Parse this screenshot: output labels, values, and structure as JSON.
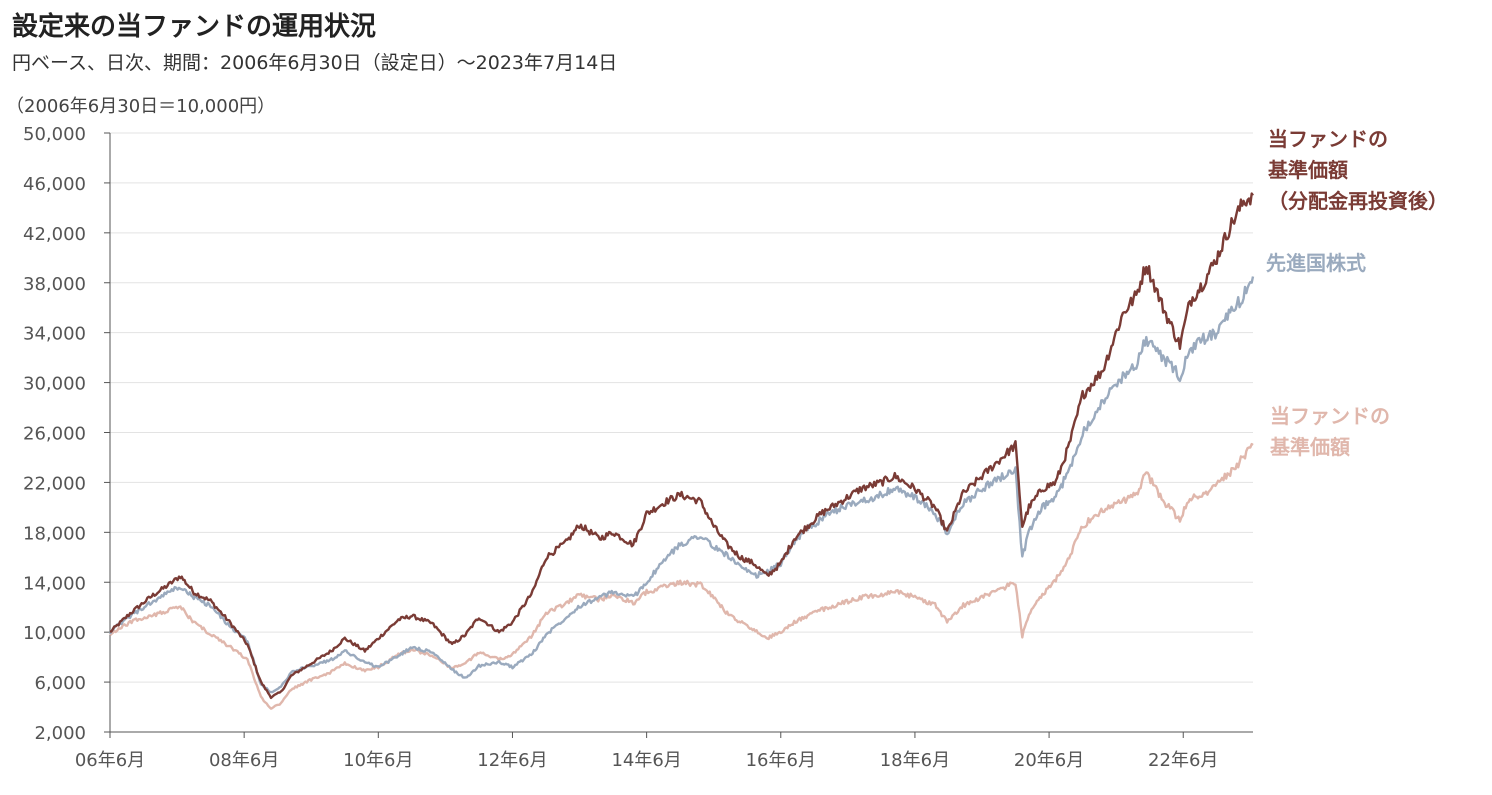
{
  "header": {
    "title": "設定来の当ファンドの運用状況",
    "subtitle": "円ベース、日次、期間：2006年6月30日（設定日）～2023年7月14日",
    "unit_note": "（2006年6月30日＝10,000円）"
  },
  "legend": {
    "fund_reinvested": [
      "当ファンドの",
      "基準価額",
      "（分配金再投資後）"
    ],
    "benchmark": [
      "先進国株式"
    ],
    "fund_nav": [
      "当ファンドの",
      "基準価額"
    ]
  },
  "chart_data": {
    "type": "line",
    "title": "設定来の当ファンドの運用状況",
    "ylim": [
      2000,
      50000
    ],
    "yticks": [
      2000,
      6000,
      10000,
      14000,
      18000,
      22000,
      26000,
      30000,
      34000,
      38000,
      42000,
      46000,
      50000
    ],
    "ytick_labels": [
      "2,000",
      "6,000",
      "10,000",
      "14,000",
      "18,000",
      "22,000",
      "26,000",
      "30,000",
      "34,000",
      "38,000",
      "42,000",
      "46,000",
      "50,000"
    ],
    "xlim": [
      2006.5,
      2023.54
    ],
    "xticks": [
      2006.5,
      2008.5,
      2010.5,
      2012.5,
      2014.5,
      2016.5,
      2018.5,
      2020.5,
      2022.5
    ],
    "xtick_labels": [
      "06年6月",
      "08年6月",
      "10年6月",
      "12年6月",
      "14年6月",
      "16年6月",
      "18年6月",
      "20年6月",
      "22年6月"
    ],
    "grid": true,
    "series": [
      {
        "name": "当ファンドの基準価額（分配金再投資後）",
        "color": "#7a3b35",
        "x": [
          2006.5,
          2006.8,
          2007.1,
          2007.4,
          2007.55,
          2007.75,
          2008.0,
          2008.3,
          2008.55,
          2008.75,
          2008.9,
          2009.05,
          2009.2,
          2009.5,
          2009.8,
          2010.0,
          2010.3,
          2010.5,
          2010.8,
          2011.0,
          2011.3,
          2011.6,
          2011.8,
          2012.0,
          2012.3,
          2012.5,
          2012.8,
          2013.0,
          2013.3,
          2013.5,
          2013.8,
          2014.0,
          2014.3,
          2014.5,
          2014.8,
          2015.0,
          2015.3,
          2015.5,
          2015.7,
          2015.9,
          2016.1,
          2016.3,
          2016.5,
          2016.7,
          2016.9,
          2017.1,
          2017.4,
          2017.7,
          2018.0,
          2018.2,
          2018.5,
          2018.8,
          2018.98,
          2019.2,
          2019.5,
          2019.8,
          2020.0,
          2020.1,
          2020.2,
          2020.4,
          2020.6,
          2020.8,
          2021.0,
          2021.3,
          2021.6,
          2021.8,
          2021.95,
          2022.2,
          2022.45,
          2022.6,
          2022.8,
          2023.0,
          2023.2,
          2023.4,
          2023.54
        ],
        "values": [
          10000,
          11500,
          12800,
          13900,
          14500,
          13200,
          12500,
          10700,
          9000,
          6000,
          4800,
          5200,
          6500,
          7500,
          8500,
          9500,
          8500,
          9500,
          11000,
          11300,
          10700,
          9000,
          9800,
          11200,
          10000,
          10800,
          13200,
          16000,
          17200,
          18600,
          17500,
          18000,
          17000,
          19500,
          20500,
          21000,
          20500,
          18500,
          17000,
          16000,
          15500,
          14500,
          15500,
          17500,
          18500,
          19500,
          20500,
          21500,
          22000,
          22500,
          21500,
          20000,
          18000,
          21000,
          22500,
          24000,
          25000,
          18500,
          20000,
          21500,
          22000,
          25000,
          29000,
          31000,
          35500,
          37000,
          39500,
          36000,
          33000,
          36500,
          38000,
          40000,
          42500,
          44500,
          45000
        ]
      },
      {
        "name": "先進国株式",
        "color": "#9aaabe",
        "x": [
          2006.5,
          2006.8,
          2007.1,
          2007.4,
          2007.55,
          2007.75,
          2008.0,
          2008.3,
          2008.55,
          2008.75,
          2008.9,
          2009.05,
          2009.2,
          2009.5,
          2009.8,
          2010.0,
          2010.3,
          2010.5,
          2010.8,
          2011.0,
          2011.3,
          2011.6,
          2011.8,
          2012.0,
          2012.3,
          2012.5,
          2012.8,
          2013.0,
          2013.3,
          2013.5,
          2013.8,
          2014.0,
          2014.3,
          2014.5,
          2014.8,
          2015.0,
          2015.3,
          2015.5,
          2015.7,
          2015.9,
          2016.1,
          2016.3,
          2016.5,
          2016.7,
          2016.9,
          2017.1,
          2017.4,
          2017.7,
          2018.0,
          2018.2,
          2018.5,
          2018.8,
          2018.98,
          2019.2,
          2019.5,
          2019.8,
          2020.0,
          2020.1,
          2020.2,
          2020.4,
          2020.6,
          2020.8,
          2021.0,
          2021.3,
          2021.6,
          2021.8,
          2021.95,
          2022.2,
          2022.45,
          2022.6,
          2022.8,
          2023.0,
          2023.2,
          2023.4,
          2023.54
        ],
        "values": [
          10000,
          11300,
          12300,
          13300,
          13600,
          12800,
          12100,
          10400,
          9300,
          5800,
          5200,
          5600,
          6800,
          7300,
          7800,
          8500,
          7600,
          7200,
          8100,
          8800,
          8400,
          7000,
          6300,
          7300,
          7600,
          7200,
          8300,
          9800,
          11200,
          12100,
          12800,
          13200,
          12800,
          14000,
          16000,
          17000,
          17800,
          16800,
          16200,
          15200,
          14500,
          14800,
          15500,
          17300,
          18300,
          19000,
          20000,
          20500,
          21000,
          21500,
          20800,
          19500,
          17800,
          20200,
          21500,
          22500,
          23000,
          16000,
          18000,
          20000,
          20800,
          23000,
          26000,
          28500,
          30500,
          31500,
          33500,
          32000,
          30500,
          32500,
          33500,
          34000,
          35500,
          37000,
          38500
        ]
      },
      {
        "name": "当ファンドの基準価額",
        "color": "#e0b7ac",
        "x": [
          2006.5,
          2006.8,
          2007.1,
          2007.4,
          2007.55,
          2007.75,
          2008.0,
          2008.3,
          2008.55,
          2008.75,
          2008.9,
          2009.05,
          2009.2,
          2009.5,
          2009.8,
          2010.0,
          2010.3,
          2010.5,
          2010.8,
          2011.0,
          2011.3,
          2011.6,
          2011.8,
          2012.0,
          2012.3,
          2012.5,
          2012.8,
          2013.0,
          2013.3,
          2013.5,
          2013.8,
          2014.0,
          2014.3,
          2014.5,
          2014.8,
          2015.0,
          2015.3,
          2015.5,
          2015.7,
          2015.9,
          2016.1,
          2016.3,
          2016.5,
          2016.7,
          2016.9,
          2017.1,
          2017.4,
          2017.7,
          2018.0,
          2018.2,
          2018.5,
          2018.8,
          2018.98,
          2019.2,
          2019.5,
          2019.8,
          2020.0,
          2020.1,
          2020.2,
          2020.4,
          2020.6,
          2020.8,
          2021.0,
          2021.3,
          2021.6,
          2021.8,
          2021.95,
          2022.2,
          2022.45,
          2022.6,
          2022.8,
          2023.0,
          2023.2,
          2023.4,
          2023.54
        ],
        "values": [
          9800,
          10800,
          11300,
          11800,
          12000,
          10800,
          9800,
          8800,
          7800,
          4800,
          3900,
          4300,
          5400,
          6200,
          6800,
          7500,
          6900,
          7200,
          8200,
          8600,
          8100,
          7100,
          7500,
          8400,
          7800,
          8200,
          9800,
          11500,
          12300,
          13000,
          12600,
          13000,
          12300,
          13200,
          13700,
          14000,
          13800,
          12800,
          11500,
          10800,
          10200,
          9500,
          10000,
          10800,
          11300,
          11800,
          12300,
          12800,
          13000,
          13300,
          12800,
          12200,
          10800,
          12100,
          12800,
          13500,
          14000,
          9700,
          11500,
          13000,
          14200,
          16000,
          18500,
          19800,
          20500,
          21000,
          22800,
          20500,
          19000,
          20800,
          21000,
          21800,
          22800,
          24000,
          25000
        ]
      }
    ]
  }
}
